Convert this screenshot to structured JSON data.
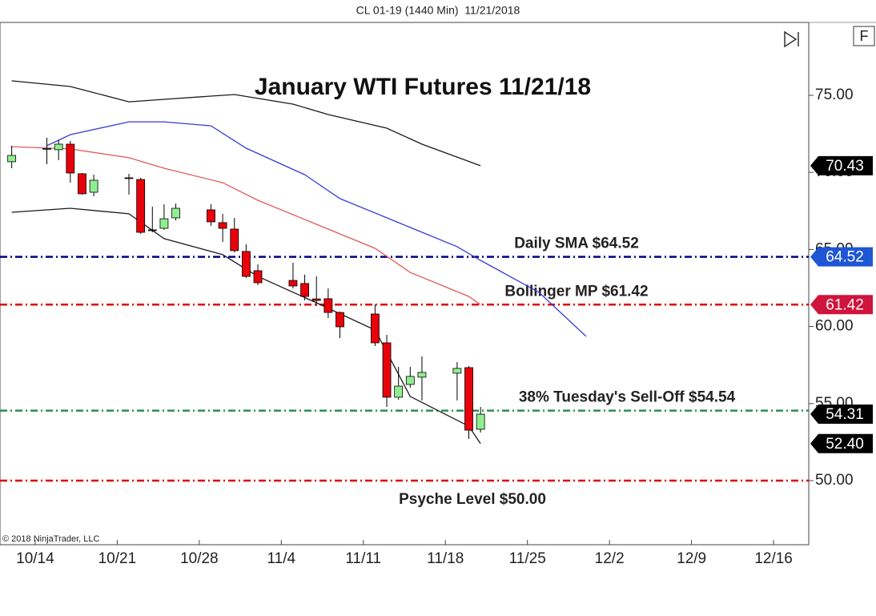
{
  "header": "CL 01-19 (1440 Min)  11/21/2018",
  "corner_button": "F",
  "copyright": "© 2018 NinjaTrader, LLC",
  "chart_data": {
    "type": "candlestick",
    "title": "January WTI Futures 11/21/18",
    "x": [
      "2018-10-12",
      "2018-10-15",
      "2018-10-16",
      "2018-10-17",
      "2018-10-18",
      "2018-10-19",
      "2018-10-22",
      "2018-10-23",
      "2018-10-24",
      "2018-10-25",
      "2018-10-26",
      "2018-10-29",
      "2018-10-30",
      "2018-10-31",
      "2018-11-01",
      "2018-11-02",
      "2018-11-05",
      "2018-11-06",
      "2018-11-07",
      "2018-11-08",
      "2018-11-09",
      "2018-11-12",
      "2018-11-13",
      "2018-11-14",
      "2018-11-15",
      "2018-11-16",
      "2018-11-19",
      "2018-11-20",
      "2018-11-21"
    ],
    "open": [
      70.69,
      71.5,
      71.47,
      71.83,
      69.91,
      68.71,
      69.65,
      69.54,
      66.27,
      66.37,
      67.05,
      67.57,
      66.74,
      66.32,
      64.87,
      63.62,
      62.99,
      62.79,
      61.79,
      61.8,
      60.91,
      60.81,
      58.94,
      55.41,
      56.24,
      56.71,
      56.97,
      57.33,
      53.33
    ],
    "high": [
      71.73,
      72.25,
      72.09,
      72.04,
      69.96,
      69.85,
      69.91,
      69.65,
      67.78,
      67.93,
      67.98,
      67.93,
      67.31,
      67.05,
      65.33,
      64.03,
      64.14,
      63.36,
      63.25,
      62.47,
      60.97,
      61.43,
      59.46,
      57.38,
      57.38,
      58.06,
      57.69,
      57.43,
      54.78
    ],
    "low": [
      70.27,
      70.53,
      70.79,
      69.33,
      68.55,
      68.45,
      68.55,
      66.01,
      66.11,
      66.27,
      66.89,
      66.53,
      65.49,
      64.81,
      63.15,
      62.68,
      62.47,
      61.69,
      61.33,
      60.55,
      59.25,
      58.73,
      54.78,
      55.25,
      56.03,
      55.2,
      55.2,
      52.7,
      53.12
    ],
    "close": [
      71.1,
      71.55,
      71.83,
      69.96,
      68.61,
      69.49,
      69.6,
      66.11,
      66.22,
      66.99,
      67.67,
      66.79,
      66.37,
      64.92,
      63.25,
      62.84,
      62.63,
      61.95,
      61.69,
      60.91,
      59.98,
      58.94,
      55.41,
      56.13,
      56.76,
      57.02,
      57.28,
      53.27,
      54.31
    ],
    "up_color": "#90ee90",
    "down_color": "#e8000b",
    "lines": [
      {
        "color": "#1a1a1a",
        "x": [
          "2018-10-12",
          "2018-10-17",
          "2018-10-22",
          "2018-10-26",
          "2018-10-31",
          "2018-11-05",
          "2018-11-08",
          "2018-11-13",
          "2018-11-16",
          "2018-11-21"
        ],
        "values": [
          75.94,
          75.57,
          74.58,
          74.79,
          75.05,
          74.43,
          73.75,
          72.87,
          71.83,
          70.43
        ]
      },
      {
        "color": "#1a1a1a",
        "x": [
          "2018-10-12",
          "2018-10-17",
          "2018-10-22",
          "2018-10-25",
          "2018-10-30",
          "2018-11-02",
          "2018-11-07",
          "2018-11-12",
          "2018-11-15",
          "2018-11-20",
          "2018-11-21"
        ],
        "values": [
          67.41,
          67.67,
          67.31,
          65.7,
          64.66,
          63.25,
          61.54,
          59.77,
          55.46,
          53.53,
          52.4
        ]
      },
      {
        "color": "#e05a5a",
        "x": [
          "2018-10-12",
          "2018-10-17",
          "2018-10-22",
          "2018-10-25",
          "2018-10-30",
          "2018-11-02",
          "2018-11-07",
          "2018-11-12",
          "2018-11-15",
          "2018-11-20",
          "2018-11-21"
        ],
        "values": [
          71.67,
          71.52,
          70.95,
          70.27,
          69.33,
          68.19,
          66.63,
          65.07,
          63.51,
          61.95,
          61.42
        ]
      },
      {
        "color": "#3a3ad6",
        "x": [
          "2018-10-15",
          "2018-10-17",
          "2018-10-22",
          "2018-10-25",
          "2018-10-29",
          "2018-11-01",
          "2018-11-06",
          "2018-11-09",
          "2018-11-14",
          "2018-11-19",
          "2018-11-21",
          "2018-11-26",
          "2018-11-30"
        ],
        "values": [
          71.73,
          72.45,
          73.28,
          73.28,
          73.02,
          71.57,
          69.85,
          68.3,
          66.74,
          65.18,
          64.29,
          62.21,
          59.36
        ]
      }
    ],
    "levels": [
      {
        "label": "Daily SMA $64.52",
        "value": 64.52,
        "color": "#00008b"
      },
      {
        "label": "Bollinger MP $61.42",
        "value": 61.42,
        "color": "#e00000"
      },
      {
        "label": "38% Tuesday's Sell-Off $54.54",
        "value": 54.54,
        "color": "#2e8b57"
      },
      {
        "label": "Psyche Level $50.00",
        "value": 50.0,
        "color": "#e00000"
      }
    ],
    "price_markers": [
      {
        "value": 70.43,
        "color": "#000000"
      },
      {
        "value": 64.52,
        "color": "#1e56d6"
      },
      {
        "value": 61.42,
        "color": "#d0143c"
      },
      {
        "value": 54.31,
        "color": "#000000"
      },
      {
        "value": 52.4,
        "label": "52.40",
        "color": "#000000"
      }
    ],
    "xlim": [
      "2018-10-11",
      "2018-12-19"
    ],
    "xticks": [
      {
        "value": "2018-10-14",
        "label": "10/14"
      },
      {
        "value": "2018-10-21",
        "label": "10/21"
      },
      {
        "value": "2018-10-28",
        "label": "10/28"
      },
      {
        "value": "2018-11-04",
        "label": "11/4"
      },
      {
        "value": "2018-11-11",
        "label": "11/11"
      },
      {
        "value": "2018-11-18",
        "label": "11/18"
      },
      {
        "value": "2018-11-25",
        "label": "11/25"
      },
      {
        "value": "2018-12-02",
        "label": "12/2"
      },
      {
        "value": "2018-12-09",
        "label": "12/9"
      },
      {
        "value": "2018-12-16",
        "label": "12/16"
      }
    ],
    "ylim": [
      45.84,
      79.73
    ],
    "yticks": [
      {
        "value": 50,
        "label": "50.00"
      },
      {
        "value": 55,
        "label": "55.00"
      },
      {
        "value": 60,
        "label": "60.00"
      },
      {
        "value": 65,
        "label": "65.00"
      },
      {
        "value": 70,
        "label": "70.00"
      },
      {
        "value": 75,
        "label": "75.00"
      }
    ],
    "grid": false
  }
}
